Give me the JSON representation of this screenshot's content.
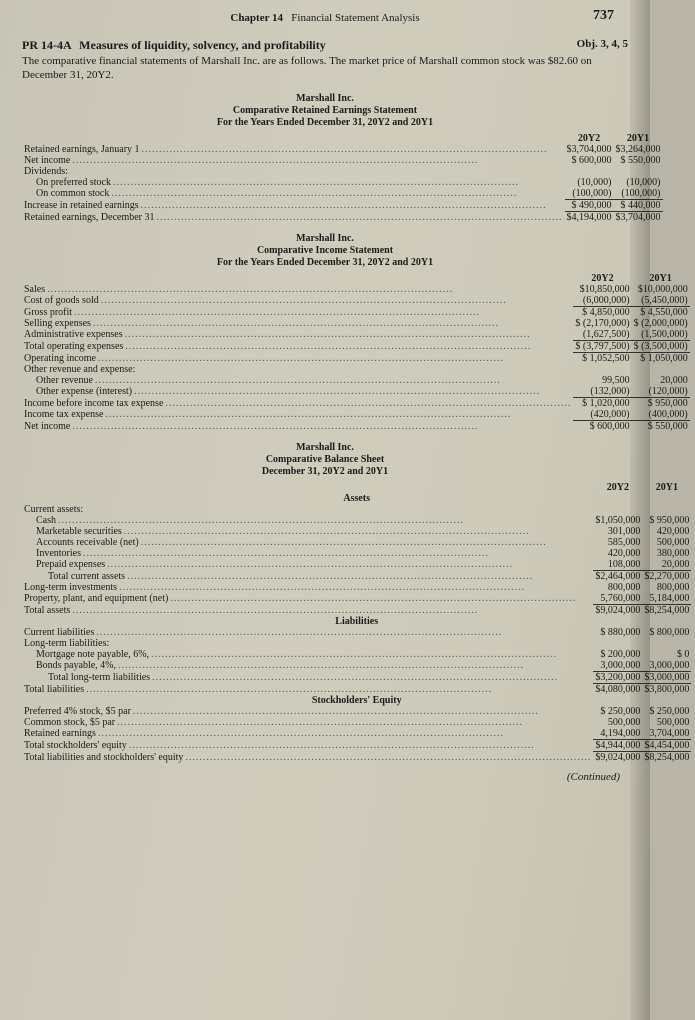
{
  "page": {
    "chapter_label": "Chapter 14",
    "chapter_title": "Financial Statement Analysis",
    "number": "737"
  },
  "problem": {
    "code": "PR 14-4A",
    "title": "Measures of liquidity, solvency, and profitability",
    "objective": "Obj. 3, 4, 5",
    "intro": "The comparative financial statements of Marshall Inc. are as follows. The market price of Marshall common stock was $82.60 on December 31, 20Y2."
  },
  "retained": {
    "company": "Marshall Inc.",
    "title": "Comparative Retained Earnings Statement",
    "period": "For the Years Ended December 31, 20Y2 and 20Y1",
    "col1": "20Y2",
    "col2": "20Y1",
    "rows": [
      {
        "label": "Retained earnings, January 1",
        "y2": "$3,704,000",
        "y1": "$3,264,000"
      },
      {
        "label": "Net income",
        "y2": "$   600,000",
        "y1": "$   550,000"
      },
      {
        "label": "Dividends:",
        "y2": "",
        "y1": ""
      },
      {
        "label": "On preferred stock",
        "indent": 1,
        "y2": "(10,000)",
        "y1": "(10,000)"
      },
      {
        "label": "On common stock",
        "indent": 1,
        "y2": "(100,000)",
        "y1": "(100,000)",
        "ul_bot": true
      },
      {
        "label": "Increase in retained earnings",
        "y2": "$   490,000",
        "y1": "$   440,000",
        "ul_bot": true
      },
      {
        "label": "Retained earnings, December 31",
        "y2": "$4,194,000",
        "y1": "$3,704,000"
      }
    ]
  },
  "income": {
    "company": "Marshall Inc.",
    "title": "Comparative Income Statement",
    "period": "For the Years Ended December 31, 20Y2 and 20Y1",
    "col1": "20Y2",
    "col2": "20Y1",
    "rows": [
      {
        "label": "Sales",
        "y2": "$10,850,000",
        "y1": "$10,000,000"
      },
      {
        "label": "Cost of goods sold",
        "y2": "(6,000,000)",
        "y1": "(5,450,000)",
        "ul_bot": true
      },
      {
        "label": "Gross profit",
        "y2": "$  4,850,000",
        "y1": "$  4,550,000"
      },
      {
        "label": "Selling expenses",
        "y2": "$ (2,170,000)",
        "y1": "$ (2,000,000)"
      },
      {
        "label": "Administrative expenses",
        "y2": "(1,627,500)",
        "y1": "(1,500,000)",
        "ul_bot": true
      },
      {
        "label": "Total operating expenses",
        "y2": "$ (3,797,500)",
        "y1": "$ (3,500,000)",
        "ul_bot": true
      },
      {
        "label": "Operating income",
        "y2": "$  1,052,500",
        "y1": "$  1,050,000"
      },
      {
        "label": "Other revenue and expense:",
        "y2": "",
        "y1": ""
      },
      {
        "label": "Other revenue",
        "indent": 1,
        "y2": "99,500",
        "y1": "20,000"
      },
      {
        "label": "Other expense (interest)",
        "indent": 1,
        "y2": "(132,000)",
        "y1": "(120,000)",
        "ul_bot": true
      },
      {
        "label": "Income before income tax expense",
        "y2": "$  1,020,000",
        "y1": "$     950,000"
      },
      {
        "label": "Income tax expense",
        "y2": "(420,000)",
        "y1": "(400,000)",
        "ul_bot": true
      },
      {
        "label": "Net income",
        "y2": "$     600,000",
        "y1": "$     550,000"
      }
    ]
  },
  "balance": {
    "company": "Marshall Inc.",
    "title": "Comparative Balance Sheet",
    "period": "December 31, 20Y2 and 20Y1",
    "col1": "20Y2",
    "col2": "20Y1",
    "sections": {
      "assets_hdr": "Assets",
      "liab_hdr": "Liabilities",
      "se_hdr": "Stockholders' Equity"
    },
    "assets": [
      {
        "label": "Current assets:",
        "y2": "",
        "y1": ""
      },
      {
        "label": "Cash",
        "indent": 1,
        "y2": "$1,050,000",
        "y1": "$   950,000"
      },
      {
        "label": "Marketable securities",
        "indent": 1,
        "y2": "301,000",
        "y1": "420,000"
      },
      {
        "label": "Accounts receivable (net)",
        "indent": 1,
        "y2": "585,000",
        "y1": "500,000"
      },
      {
        "label": "Inventories",
        "indent": 1,
        "y2": "420,000",
        "y1": "380,000"
      },
      {
        "label": "Prepaid expenses",
        "indent": 1,
        "y2": "108,000",
        "y1": "20,000",
        "ul_bot": true
      },
      {
        "label": "Total current assets",
        "indent": 2,
        "y2": "$2,464,000",
        "y1": "$2,270,000"
      },
      {
        "label": "Long-term investments",
        "y2": "800,000",
        "y1": "800,000"
      },
      {
        "label": "Property, plant, and equipment (net)",
        "y2": "5,760,000",
        "y1": "5,184,000",
        "ul_bot": true
      },
      {
        "label": "Total assets",
        "y2": "$9,024,000",
        "y1": "$8,254,000"
      }
    ],
    "liabilities": [
      {
        "label": "Current liabilities",
        "y2": "$   880,000",
        "y1": "$   800,000"
      },
      {
        "label": "Long-term liabilities:",
        "y2": "",
        "y1": ""
      },
      {
        "label": "Mortgage note payable, 6%,",
        "indent": 1,
        "y2": "$   200,000",
        "y1": "$             0"
      },
      {
        "label": "Bonds payable, 4%,",
        "indent": 1,
        "y2": "3,000,000",
        "y1": "3,000,000",
        "ul_bot": true
      },
      {
        "label": "Total long-term liabilities",
        "indent": 2,
        "y2": "$3,200,000",
        "y1": "$3,000,000",
        "ul_bot": true
      },
      {
        "label": "Total liabilities",
        "y2": "$4,080,000",
        "y1": "$3,800,000"
      }
    ],
    "equity": [
      {
        "label": "Preferred 4% stock, $5 par",
        "y2": "$   250,000",
        "y1": "$   250,000"
      },
      {
        "label": "Common stock, $5 par",
        "y2": "500,000",
        "y1": "500,000"
      },
      {
        "label": "Retained earnings",
        "y2": "4,194,000",
        "y1": "3,704,000",
        "ul_bot": true
      },
      {
        "label": "Total stockholders' equity",
        "y2": "$4,944,000",
        "y1": "$4,454,000",
        "ul_bot": true
      },
      {
        "label": "Total liabilities and stockholders' equity",
        "y2": "$9,024,000",
        "y1": "$8,254,000"
      }
    ]
  },
  "continued": "(Continued)"
}
